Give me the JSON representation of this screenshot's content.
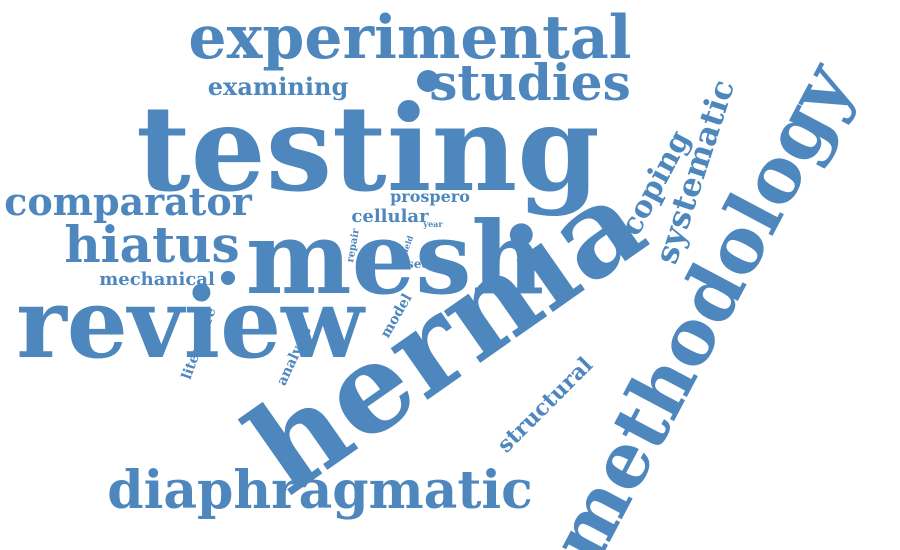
{
  "color": "#4d87bd",
  "words": [
    "testing",
    "hernia",
    "mesh",
    "review",
    "methodology",
    "experimental",
    "studies",
    "diaphragmatic",
    "hiatus",
    "comparator",
    "systematic",
    "scoping",
    "examining",
    "structural",
    "mechanical",
    "literature",
    "analysis",
    "model",
    "cellular",
    "prospero",
    "used",
    "repair",
    "field",
    "year"
  ]
}
